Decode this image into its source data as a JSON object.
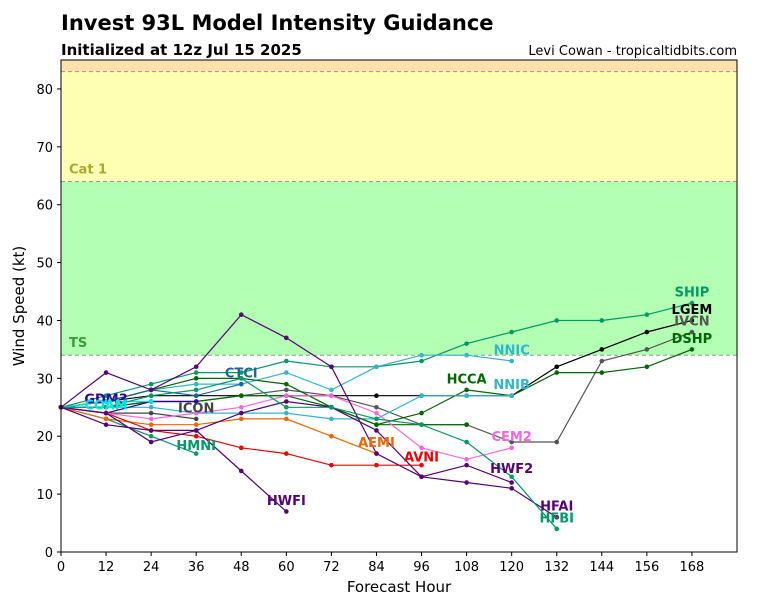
{
  "chart_data": {
    "type": "line",
    "title": "Invest 93L Model Intensity Guidance",
    "subtitle": "Initialized at 12z Jul 15 2025",
    "credit": "Levi Cowan - tropicaltidbits.com",
    "xlabel": "Forecast Hour",
    "ylabel": "Wind Speed (kt)",
    "xlim": [
      0,
      180
    ],
    "ylim": [
      0,
      85
    ],
    "xticks": [
      "0",
      "12",
      "24",
      "36",
      "48",
      "60",
      "72",
      "84",
      "96",
      "108",
      "120",
      "132",
      "144",
      "156",
      "168"
    ],
    "yticks": [
      "0",
      "10",
      "20",
      "30",
      "40",
      "50",
      "60",
      "70",
      "80"
    ],
    "bands": [
      {
        "name": "TS",
        "from": 34,
        "to": 64,
        "color": "#b3ffb3",
        "label_color": "#3c9c3c"
      },
      {
        "name": "Cat 1",
        "from": 64,
        "to": 83,
        "color": "#ffffb3",
        "label_color": "#a8a832"
      },
      {
        "name": "",
        "from": 83,
        "to": 85,
        "color": "#ffdfaa",
        "label_color": "#000000"
      }
    ],
    "series": [
      {
        "name": "SHIP",
        "color": "#009966",
        "x": [
          0,
          12,
          24,
          36,
          48,
          60,
          72,
          84,
          96,
          108,
          120,
          132,
          144,
          156,
          168
        ],
        "y": [
          25,
          27,
          29,
          31,
          31,
          33,
          32,
          32,
          33,
          36,
          38,
          40,
          40,
          41,
          43
        ],
        "lx": 168,
        "ly": 45
      },
      {
        "name": "LGEM",
        "color": "#000000",
        "x": [
          0,
          12,
          24,
          36,
          48,
          60,
          72,
          84,
          96,
          108,
          120,
          132,
          144,
          156,
          168
        ],
        "y": [
          25,
          26,
          27,
          27,
          27,
          27,
          27,
          27,
          27,
          27,
          27,
          32,
          35,
          38,
          40
        ],
        "lx": 168,
        "ly": 42
      },
      {
        "name": "IVCN",
        "color": "#555555",
        "x": [
          0,
          12,
          24,
          36,
          48,
          60,
          72,
          84,
          96,
          108,
          120,
          132,
          144,
          156,
          168
        ],
        "y": [
          25,
          25,
          26,
          26,
          27,
          28,
          27,
          25,
          22,
          22,
          19,
          19,
          33,
          35,
          38
        ],
        "lx": 168,
        "ly": 40
      },
      {
        "name": "DSHP",
        "color": "#006600",
        "x": [
          0,
          12,
          24,
          36,
          48,
          60,
          72,
          84,
          96,
          108,
          120,
          132,
          144,
          156,
          168
        ],
        "y": [
          25,
          25,
          26,
          26,
          27,
          27,
          25,
          22,
          24,
          28,
          27,
          31,
          31,
          32,
          35
        ],
        "lx": 168,
        "ly": 37
      },
      {
        "name": "NNIC",
        "color": "#33b5cc",
        "x": [
          0,
          12,
          24,
          36,
          48,
          60,
          72,
          84,
          96,
          108,
          120
        ],
        "y": [
          25,
          26,
          28,
          29,
          29,
          31,
          28,
          32,
          34,
          34,
          33
        ],
        "lx": 120,
        "ly": 35
      },
      {
        "name": "NNIB",
        "color": "#33b5cc",
        "x": [
          0,
          12,
          24,
          36,
          48,
          60,
          72,
          84,
          96,
          108,
          120
        ],
        "y": [
          25,
          25,
          25,
          24,
          24,
          24,
          23,
          23,
          27,
          27,
          27
        ],
        "lx": 120,
        "ly": 29
      },
      {
        "name": "HCCA",
        "color": "#006600",
        "x": [
          0,
          12,
          24,
          36,
          48,
          60,
          72,
          84,
          96,
          108
        ],
        "y": [
          25,
          26,
          28,
          30,
          30,
          29,
          25,
          22,
          22,
          22
        ],
        "lx": 108,
        "ly": 30
      },
      {
        "name": "CTCI",
        "color": "#1a6699",
        "x": [
          0,
          12,
          24,
          36,
          48
        ],
        "y": [
          25,
          26,
          28,
          27,
          29
        ],
        "lx": 48,
        "ly": 31
      },
      {
        "name": "GDM3",
        "color": "#330099",
        "x": [
          0,
          12,
          24,
          36
        ],
        "y": [
          25,
          24,
          26,
          26
        ],
        "lx": 12,
        "ly": 26.5
      },
      {
        "name": "COAM",
        "color": "#00e5e5",
        "x": [
          0,
          12,
          24
        ],
        "y": [
          25,
          26,
          26
        ],
        "lx": 12,
        "ly": 25.5
      },
      {
        "name": "ICON",
        "color": "#444444",
        "x": [
          0,
          12,
          24,
          36
        ],
        "y": [
          25,
          24,
          24,
          23
        ],
        "lx": 36,
        "ly": 25
      },
      {
        "name": "HMNI",
        "color": "#009966",
        "x": [
          0,
          12,
          24,
          36
        ],
        "y": [
          25,
          23,
          20,
          17
        ],
        "lx": 36,
        "ly": 18.5
      },
      {
        "name": "AEMI",
        "color": "#ee6600",
        "x": [
          0,
          12,
          24,
          36,
          48,
          60,
          72,
          84
        ],
        "y": [
          25,
          23,
          22,
          22,
          23,
          23,
          20,
          17
        ],
        "lx": 84,
        "ly": 19
      },
      {
        "name": "AVNI",
        "color": "#ee0000",
        "x": [
          0,
          12,
          24,
          36,
          48,
          60,
          72,
          84,
          96
        ],
        "y": [
          25,
          24,
          21,
          20,
          18,
          17,
          15,
          15,
          15
        ],
        "lx": 96,
        "ly": 16.5
      },
      {
        "name": "CEM2",
        "color": "#ff66dd",
        "x": [
          0,
          12,
          24,
          36,
          48,
          60,
          72,
          84,
          96,
          108,
          120
        ],
        "y": [
          25,
          24,
          23,
          24,
          25,
          27,
          27,
          24,
          18,
          16,
          18
        ],
        "lx": 120,
        "ly": 20
      },
      {
        "name": "HWF2",
        "color": "#550077",
        "x": [
          0,
          12,
          24,
          36,
          48,
          60,
          72,
          84,
          96,
          108,
          120
        ],
        "y": [
          25,
          24,
          19,
          21,
          24,
          26,
          25,
          21,
          13,
          15,
          12
        ],
        "lx": 120,
        "ly": 14.5
      },
      {
        "name": "HFAI",
        "color": "#550077",
        "x": [
          0,
          12,
          24,
          36,
          48,
          60,
          72,
          84,
          96,
          108,
          120,
          132
        ],
        "y": [
          25,
          31,
          28,
          32,
          41,
          37,
          32,
          17,
          13,
          12,
          11,
          6
        ],
        "lx": 132,
        "ly": 8
      },
      {
        "name": "HFBI",
        "color": "#009966",
        "x": [
          0,
          12,
          24,
          36,
          48,
          60,
          72,
          84,
          96,
          108,
          120,
          132
        ],
        "y": [
          25,
          25,
          27,
          28,
          30,
          25,
          25,
          23,
          22,
          19,
          13,
          4
        ],
        "lx": 132,
        "ly": 6
      },
      {
        "name": "HWFI",
        "color": "#550077",
        "x": [
          0,
          12,
          24,
          36,
          48,
          60
        ],
        "y": [
          25,
          22,
          21,
          21,
          14,
          7
        ],
        "lx": 60,
        "ly": 9
      }
    ]
  }
}
